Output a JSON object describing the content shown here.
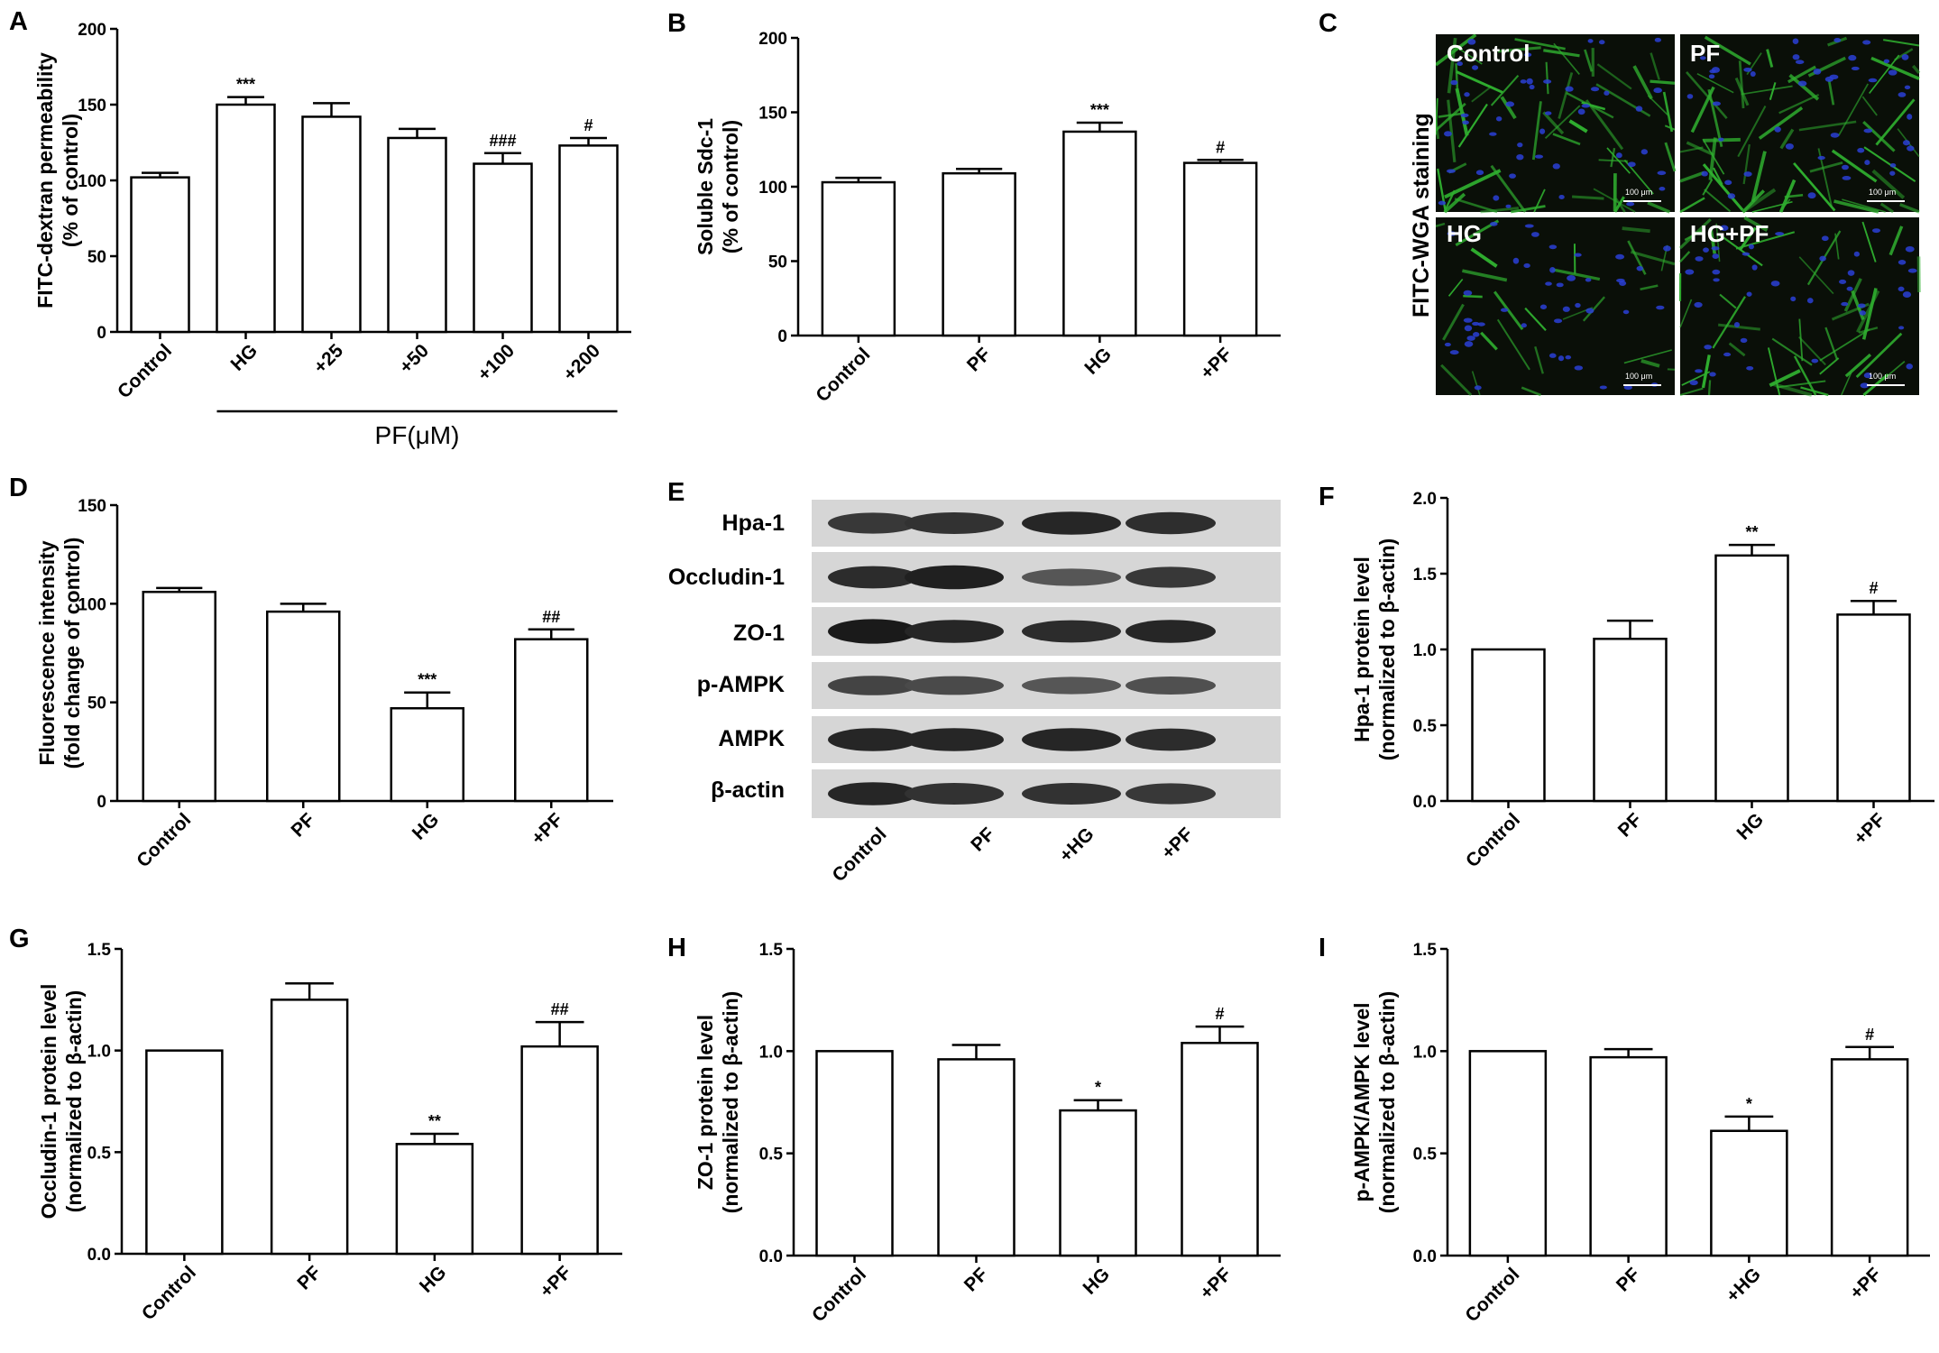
{
  "panel_letters": [
    "A",
    "B",
    "C",
    "D",
    "E",
    "F",
    "G",
    "H",
    "I"
  ],
  "panel_c": {
    "side_label": "FITC-WGA staining",
    "quadrants": [
      {
        "label": "Control",
        "scale": "100 μm"
      },
      {
        "label": "PF",
        "scale": "100 μm"
      },
      {
        "label": "HG",
        "scale": "100 μm"
      },
      {
        "label": "HG+PF",
        "scale": "100 μm"
      }
    ],
    "colors": {
      "background": "#0a0f08",
      "cytoplasm": "#2fae2f",
      "nuclei": "#2a3fd6"
    }
  },
  "panel_e": {
    "rows": [
      "Hpa-1",
      "Occludin-1",
      "ZO-1",
      "p-AMPK",
      "AMPK",
      "β-actin"
    ],
    "lanes": [
      "Control",
      "PF",
      "+HG",
      "+PF"
    ],
    "band_intensity": [
      [
        0.7,
        0.75,
        0.85,
        0.78
      ],
      [
        0.8,
        0.9,
        0.45,
        0.7
      ],
      [
        0.95,
        0.85,
        0.8,
        0.85
      ],
      [
        0.6,
        0.55,
        0.45,
        0.5
      ],
      [
        0.85,
        0.85,
        0.85,
        0.8
      ],
      [
        0.85,
        0.75,
        0.75,
        0.7
      ]
    ]
  },
  "chart_data": [
    {
      "id": "A",
      "type": "bar",
      "ylabel": [
        "FITC-dextran permeability",
        "(% of control)"
      ],
      "categories": [
        "Control",
        "HG",
        "+25",
        "+50",
        "+100",
        "+200"
      ],
      "values": [
        102,
        150,
        142,
        128,
        111,
        123
      ],
      "errors": [
        3,
        5,
        9,
        6,
        7,
        5
      ],
      "sig": [
        "",
        "***",
        "",
        "",
        "###",
        "#"
      ],
      "ylim": [
        0,
        200
      ],
      "yticks": [
        0,
        50,
        100,
        150,
        200
      ],
      "group_label": "PF(μM)",
      "group_span": [
        1,
        5
      ]
    },
    {
      "id": "B",
      "type": "bar",
      "ylabel": [
        "Soluble Sdc-1",
        "(% of control)"
      ],
      "categories": [
        "Control",
        "PF",
        "HG",
        "+PF"
      ],
      "values": [
        103,
        109,
        137,
        116
      ],
      "errors": [
        3,
        3,
        6,
        2
      ],
      "sig": [
        "",
        "",
        "***",
        "#"
      ],
      "ylim": [
        0,
        200
      ],
      "yticks": [
        0,
        50,
        100,
        150,
        200
      ]
    },
    {
      "id": "D",
      "type": "bar",
      "ylabel": [
        "Fluorescence intensity",
        "(fold change of control)"
      ],
      "categories": [
        "Control",
        "PF",
        "HG",
        "+PF"
      ],
      "values": [
        106,
        96,
        47,
        82
      ],
      "errors": [
        2,
        4,
        8,
        5
      ],
      "sig": [
        "",
        "",
        "***",
        "##"
      ],
      "ylim": [
        0,
        150
      ],
      "yticks": [
        0,
        50,
        100,
        150
      ]
    },
    {
      "id": "F",
      "type": "bar",
      "ylabel": [
        "Hpa-1 protein level",
        "(normalized to β-actin)"
      ],
      "categories": [
        "Control",
        "PF",
        "HG",
        "+PF"
      ],
      "values": [
        1.0,
        1.07,
        1.62,
        1.23
      ],
      "errors": [
        0,
        0.12,
        0.07,
        0.09
      ],
      "sig": [
        "",
        "",
        "**",
        "#"
      ],
      "ylim": [
        0,
        2.0
      ],
      "yticks": [
        "0.0",
        "0.5",
        "1.0",
        "1.5",
        "2.0"
      ]
    },
    {
      "id": "G",
      "type": "bar",
      "ylabel": [
        "Occludin-1 protein level",
        "(normalized to β-actin)"
      ],
      "categories": [
        "Control",
        "PF",
        "HG",
        "+PF"
      ],
      "values": [
        1.0,
        1.25,
        0.54,
        1.02
      ],
      "errors": [
        0,
        0.08,
        0.05,
        0.12
      ],
      "sig": [
        "",
        "",
        "**",
        "##"
      ],
      "ylim": [
        0,
        1.5
      ],
      "yticks": [
        "0.0",
        "0.5",
        "1.0",
        "1.5"
      ]
    },
    {
      "id": "H",
      "type": "bar",
      "ylabel": [
        "ZO-1  protein level",
        "(normalized to β-actin)"
      ],
      "categories": [
        "Control",
        "PF",
        "HG",
        "+PF"
      ],
      "values": [
        1.0,
        0.96,
        0.71,
        1.04
      ],
      "errors": [
        0,
        0.07,
        0.05,
        0.08
      ],
      "sig": [
        "",
        "",
        "*",
        "#"
      ],
      "ylim": [
        0,
        1.5
      ],
      "yticks": [
        "0.0",
        "0.5",
        "1.0",
        "1.5"
      ]
    },
    {
      "id": "I",
      "type": "bar",
      "ylabel": [
        "p-AMPK/AMPK level",
        "(normalized to β-actin)"
      ],
      "categories": [
        "Control",
        "PF",
        "+HG",
        "+PF"
      ],
      "values": [
        1.0,
        0.97,
        0.61,
        0.96
      ],
      "errors": [
        0,
        0.04,
        0.07,
        0.06
      ],
      "sig": [
        "",
        "",
        "*",
        "#"
      ],
      "ylim": [
        0,
        1.5
      ],
      "yticks": [
        "0.0",
        "0.5",
        "1.0",
        "1.5"
      ]
    }
  ]
}
